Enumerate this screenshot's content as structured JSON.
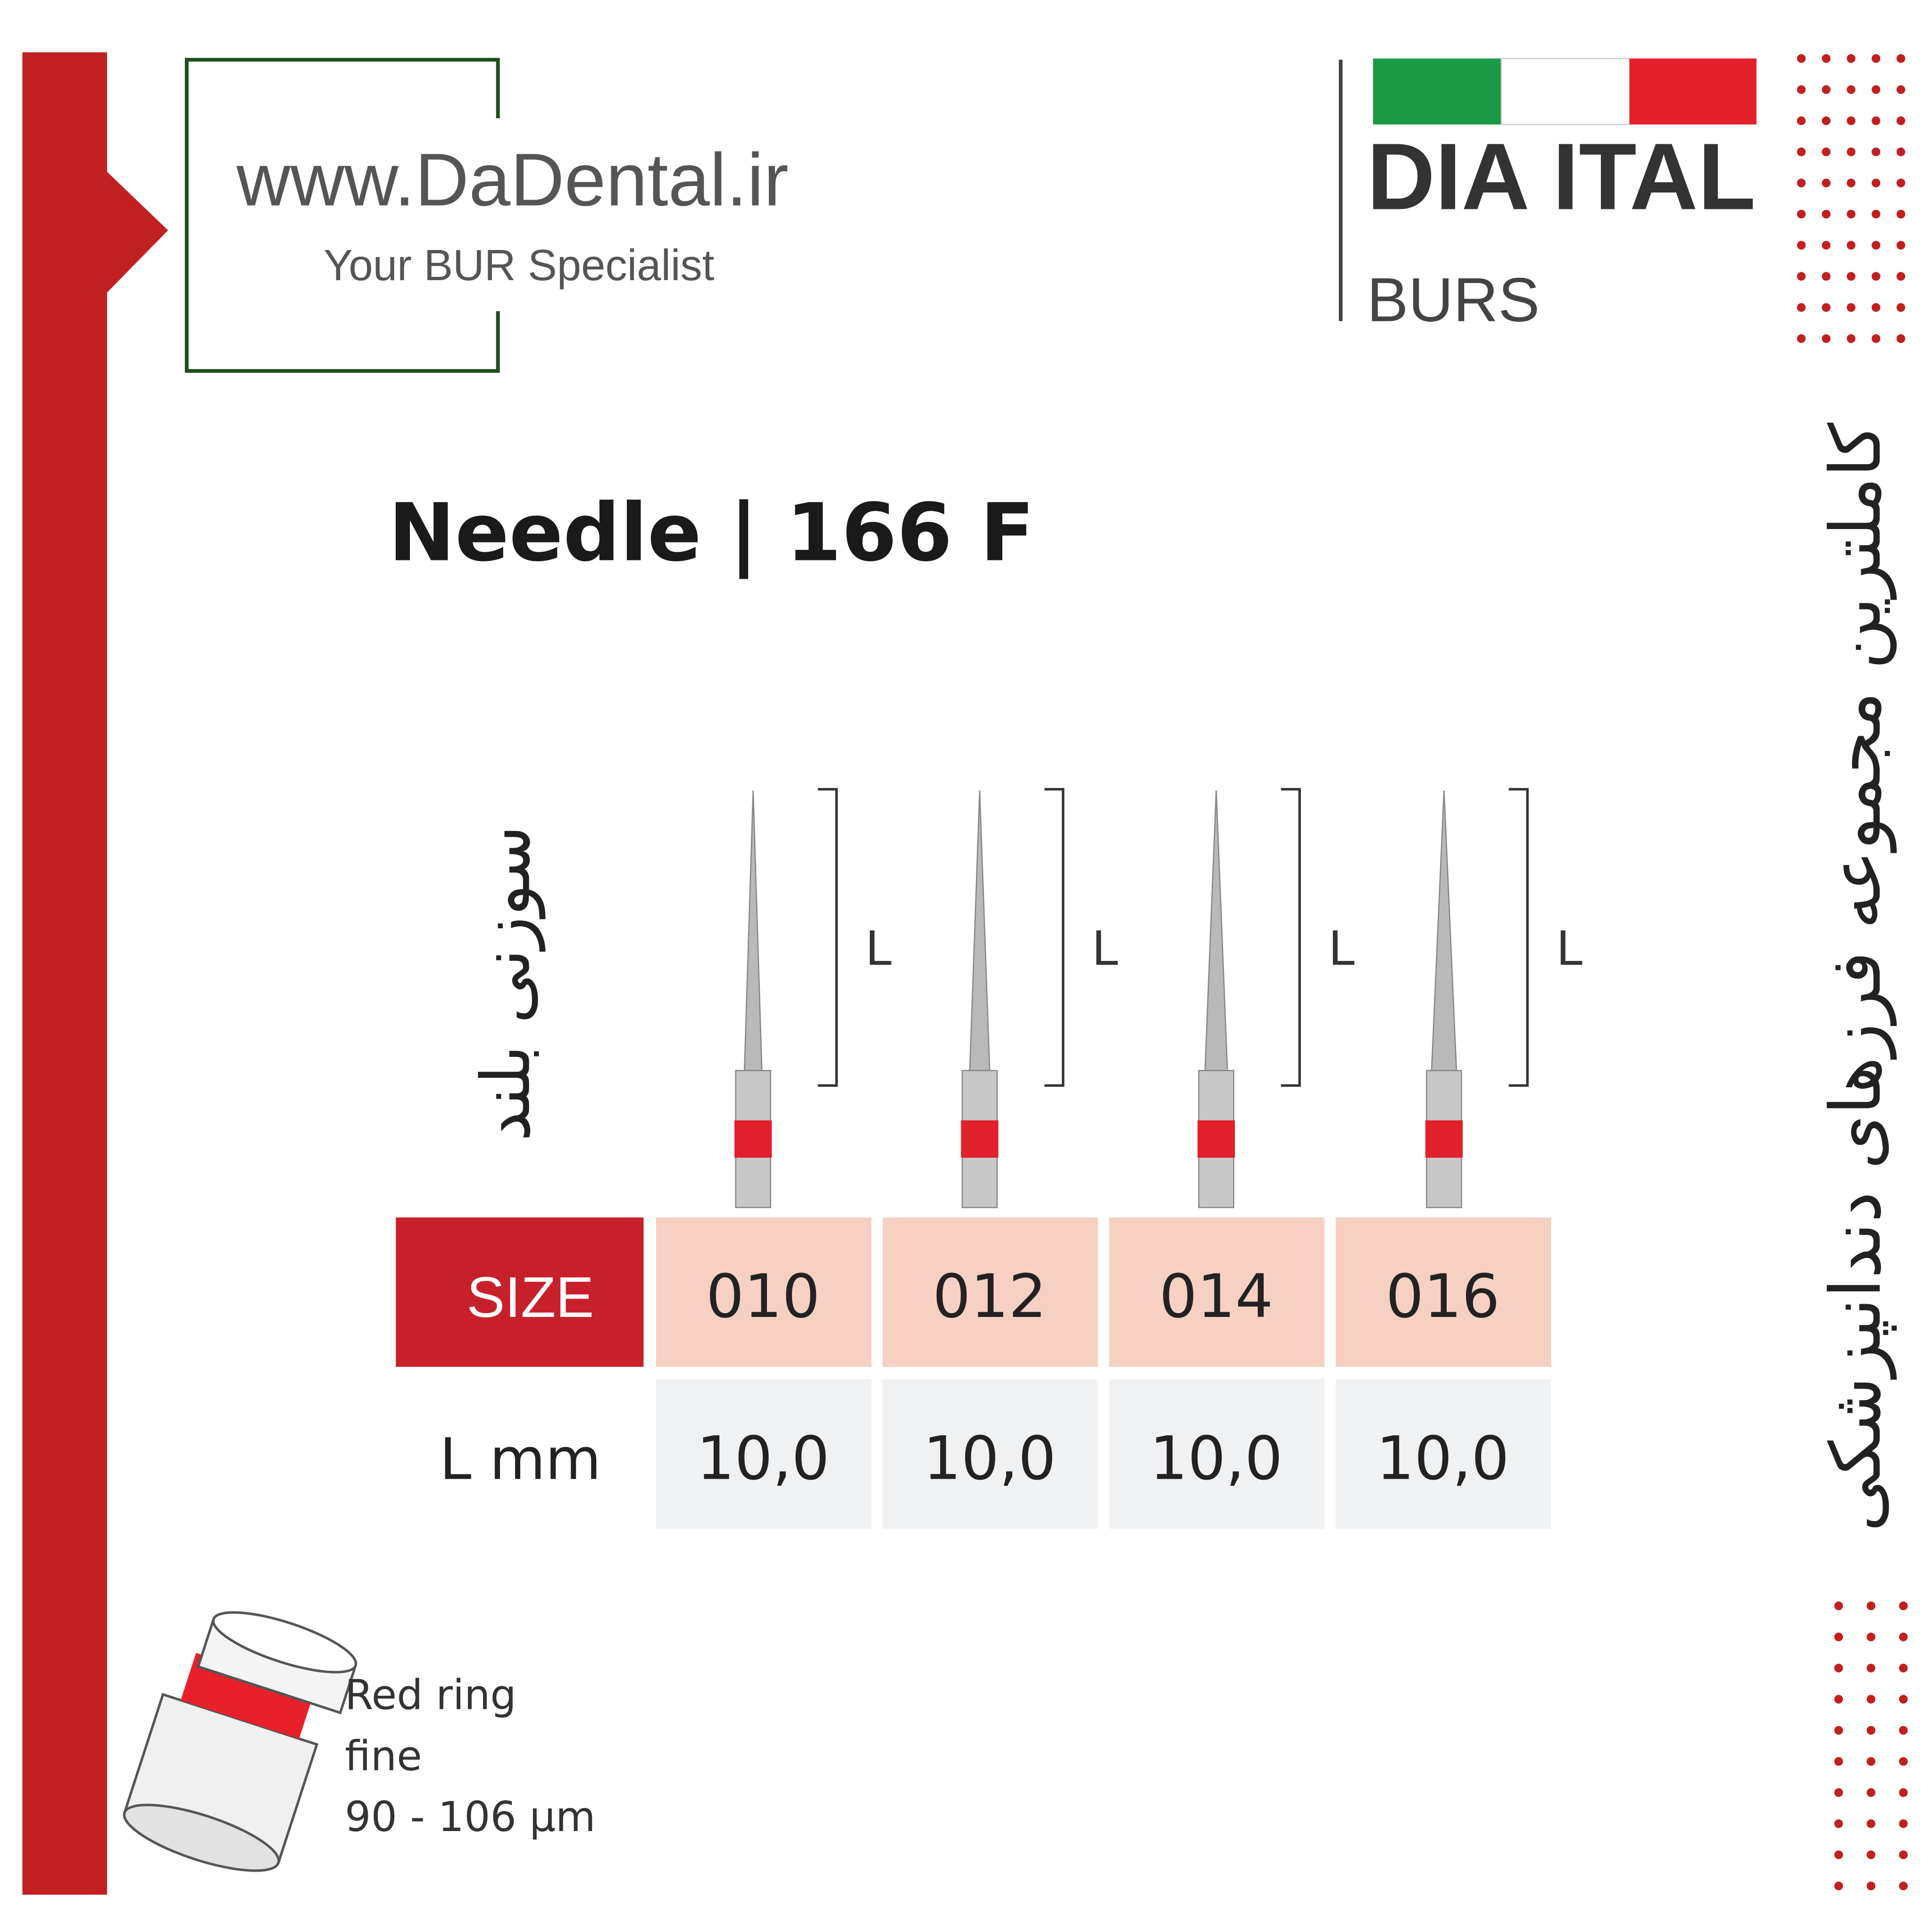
{
  "header": {
    "website": "www.DaDental.ir",
    "tagline": "Your BUR Specialist",
    "brand": "DIA ITAL",
    "brand_sub": "BURS"
  },
  "title": "Needle | 166 F",
  "persian_label": "سوزنی بلند",
  "side_text": "کاملترین مجموعه فرزهای دندانپزشکی",
  "bur_length_labels": [
    "L",
    "L",
    "L",
    "L"
  ],
  "table": {
    "header_label": "SIZE",
    "sizes": [
      "010",
      "012",
      "014",
      "016"
    ],
    "row_label": "L mm",
    "lengths": [
      "10,0",
      "10,0",
      "10,0",
      "10,0"
    ]
  },
  "legend": {
    "lines": [
      "Red ring",
      "fine",
      "90 - 106 µm"
    ]
  }
}
